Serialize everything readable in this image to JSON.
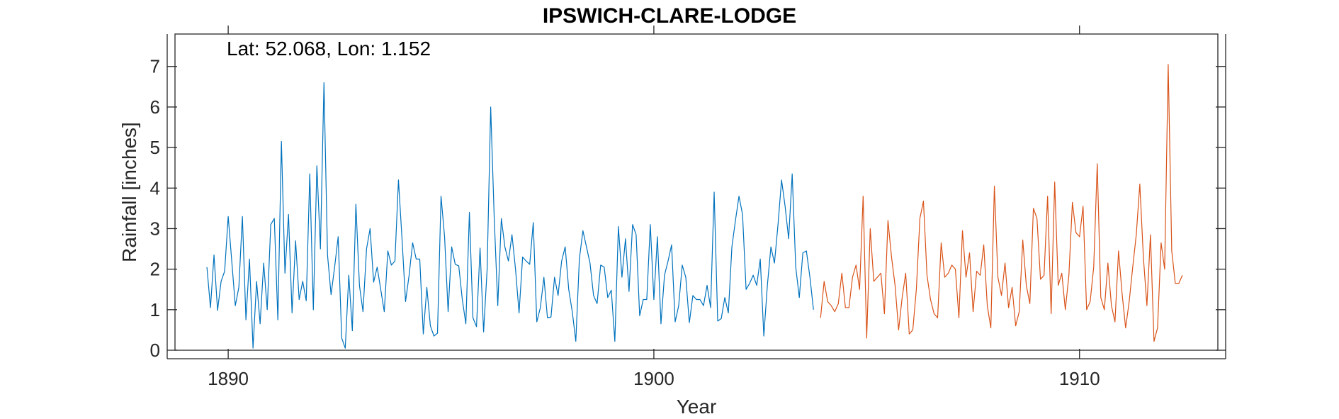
{
  "chart_data": {
    "type": "line",
    "title": "IPSWICH-CLARE-LODGE",
    "annotation": "Lat: 52.068, Lon: 1.152",
    "xlabel": "Year",
    "ylabel": "Rainfall [inches]",
    "xlim": [
      1888.75,
      1913.25
    ],
    "ylim": [
      0,
      7.8
    ],
    "xticks": [
      1890,
      1900,
      1910
    ],
    "yticks": [
      0,
      1,
      2,
      3,
      4,
      5,
      6,
      7
    ],
    "box": true,
    "grid": false,
    "series": [
      {
        "color": "#0072BD",
        "x_start": 1889.5,
        "x_step": 0.08333333,
        "values": [
          2.05,
          1.05,
          2.35,
          0.98,
          1.7,
          1.95,
          3.3,
          2.2,
          1.1,
          1.55,
          3.3,
          0.75,
          2.25,
          0.05,
          1.7,
          0.65,
          2.15,
          1.0,
          3.1,
          3.25,
          0.75,
          5.15,
          1.9,
          3.35,
          0.92,
          2.7,
          1.25,
          1.7,
          1.22,
          4.35,
          1.0,
          4.55,
          2.5,
          6.6,
          2.35,
          1.37,
          2.05,
          2.8,
          0.3,
          0.05,
          1.85,
          0.48,
          3.6,
          1.6,
          0.95,
          2.5,
          3.0,
          1.68,
          2.05,
          1.5,
          0.95,
          2.45,
          2.1,
          2.2,
          4.2,
          2.75,
          1.2,
          1.85,
          2.65,
          2.25,
          2.25,
          0.4,
          1.55,
          0.6,
          0.35,
          0.42,
          3.8,
          2.8,
          0.95,
          2.55,
          2.12,
          2.08,
          1.25,
          0.65,
          3.4,
          0.8,
          0.58,
          2.52,
          0.45,
          2.0,
          6.0,
          3.25,
          1.1,
          3.25,
          2.55,
          2.2,
          2.85,
          2.0,
          0.92,
          2.3,
          2.2,
          2.12,
          3.15,
          0.7,
          1.05,
          1.8,
          0.8,
          0.82,
          1.8,
          1.35,
          2.2,
          2.55,
          1.5,
          0.95,
          0.22,
          2.25,
          2.95,
          2.55,
          2.15,
          1.35,
          1.15,
          2.1,
          2.05,
          1.3,
          1.48,
          0.22,
          3.05,
          1.8,
          2.75,
          1.45,
          3.1,
          2.85,
          0.85,
          1.25,
          1.25,
          3.1,
          1.25,
          2.8,
          0.65,
          1.85,
          2.2,
          2.6,
          0.7,
          1.1,
          2.1,
          1.8,
          0.68,
          1.35,
          1.25,
          1.25,
          1.1,
          1.6,
          1.05,
          3.9,
          0.72,
          0.78,
          1.3,
          0.92,
          2.55,
          3.2,
          3.8,
          3.35,
          1.5,
          1.65,
          1.85,
          1.6,
          2.25,
          0.35,
          1.6,
          2.55,
          2.15,
          3.1,
          4.2,
          3.55,
          2.75,
          4.35,
          2.05,
          1.3,
          2.4,
          2.45,
          1.8,
          1.0
        ]
      },
      {
        "color": "#D95319",
        "x_start": 1903.9167,
        "x_step": 0.08333333,
        "values": [
          0.8,
          1.7,
          1.2,
          1.1,
          0.95,
          1.15,
          1.9,
          1.05,
          1.05,
          1.8,
          2.1,
          1.5,
          3.8,
          0.3,
          3.0,
          1.7,
          1.8,
          1.9,
          0.9,
          3.2,
          2.3,
          1.6,
          0.5,
          1.3,
          1.9,
          0.4,
          0.5,
          1.5,
          3.25,
          3.68,
          1.85,
          1.25,
          0.9,
          0.8,
          2.65,
          1.8,
          1.9,
          2.1,
          2.0,
          0.8,
          2.95,
          1.8,
          2.4,
          0.95,
          1.95,
          1.85,
          2.6,
          1.1,
          0.55,
          4.05,
          1.8,
          1.35,
          2.15,
          1.05,
          1.55,
          0.6,
          0.95,
          2.72,
          1.6,
          1.15,
          3.5,
          3.25,
          1.75,
          1.85,
          3.8,
          0.9,
          4.15,
          1.6,
          1.9,
          1.0,
          1.85,
          3.65,
          2.9,
          2.8,
          3.55,
          1.0,
          1.2,
          2.05,
          4.6,
          1.3,
          1.0,
          2.15,
          1.1,
          0.7,
          2.45,
          1.4,
          0.55,
          1.2,
          2.05,
          2.85,
          4.1,
          2.3,
          1.1,
          2.85,
          0.22,
          0.55,
          2.65,
          2.0,
          7.05,
          2.45,
          1.65,
          1.65,
          1.85
        ]
      }
    ]
  }
}
